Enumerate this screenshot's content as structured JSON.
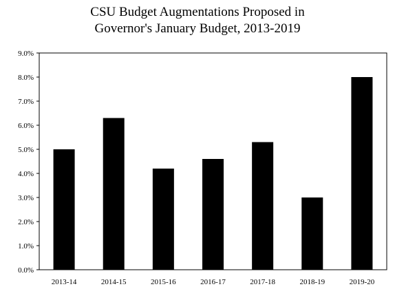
{
  "chart_data": {
    "type": "bar",
    "title_lines": [
      "CSU Budget Augmentations Proposed in",
      "Governor's January Budget, 2013-2019"
    ],
    "categories": [
      "2013-14",
      "2014-15",
      "2015-16",
      "2016-17",
      "2017-18",
      "2018-19",
      "2019-20"
    ],
    "values": [
      5.0,
      6.3,
      4.2,
      4.6,
      5.3,
      3.0,
      8.0
    ],
    "y_ticks": [
      "0.0%",
      "1.0%",
      "2.0%",
      "3.0%",
      "4.0%",
      "5.0%",
      "6.0%",
      "7.0%",
      "8.0%",
      "9.0%"
    ],
    "ylim": [
      0,
      9
    ],
    "xlabel": "",
    "ylabel": "",
    "bar_color": "#000000",
    "grid": false,
    "legend": "none"
  }
}
